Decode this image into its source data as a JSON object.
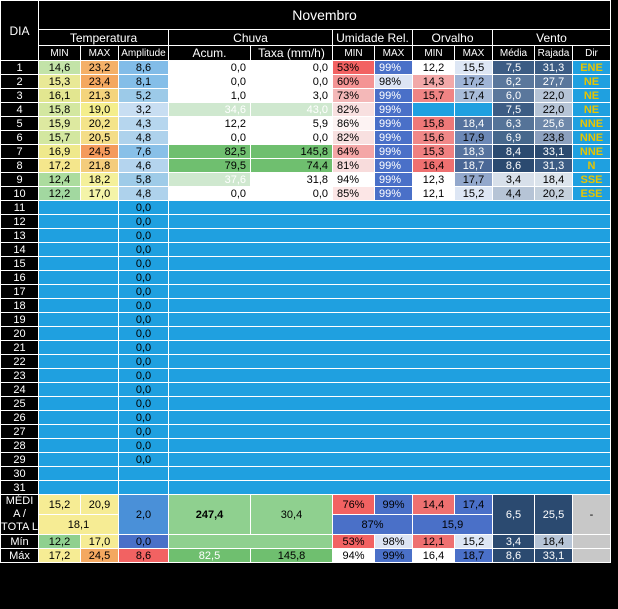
{
  "header": {
    "dia": "DIA",
    "month": "Novembro",
    "groups": {
      "temperatura": "Temperatura",
      "chuva": "Chuva",
      "umidade": "Umidade Rel.",
      "orvalho": "Orvalho",
      "vento": "Vento"
    },
    "sub": {
      "t_min": "MIN",
      "t_max": "MAX",
      "t_amp": "Amplitude",
      "c_acum": "Acum.",
      "c_taxa": "Taxa (mm/h)",
      "u_min": "MIN",
      "u_max": "MAX",
      "o_min": "MIN",
      "o_max": "MAX",
      "v_media": "Média",
      "v_rajada": "Rajada",
      "v_dir": "Dir"
    }
  },
  "days": [
    {
      "n": "1",
      "tmin": "14,6",
      "tmax": "23,2",
      "amp": "8,6",
      "acum": "0,0",
      "taxa": "0,0",
      "umin": "53%",
      "umax": "99%",
      "omin": "12,2",
      "omax": "15,5",
      "vmed": "7,5",
      "vraj": "31,3",
      "dir": "ENE"
    },
    {
      "n": "2",
      "tmin": "15,3",
      "tmax": "23,4",
      "amp": "8,1",
      "acum": "0,0",
      "taxa": "0,0",
      "umin": "60%",
      "umax": "98%",
      "omin": "14,3",
      "omax": "17,2",
      "vmed": "6,2",
      "vraj": "27,7",
      "dir": "NE"
    },
    {
      "n": "3",
      "tmin": "16,1",
      "tmax": "21,3",
      "amp": "5,2",
      "acum": "1,0",
      "taxa": "3,0",
      "umin": "73%",
      "umax": "99%",
      "omin": "15,7",
      "omax": "17,4",
      "vmed": "6,0",
      "vraj": "22,0",
      "dir": "NE"
    },
    {
      "n": "4",
      "tmin": "15,8",
      "tmax": "19,0",
      "amp": "3,2",
      "acum": "34,6",
      "taxa": "43,0",
      "umin": "82%",
      "umax": "99%",
      "omin": "",
      "omax": "",
      "vmed": "7,5",
      "vraj": "22,0",
      "dir": "NE"
    },
    {
      "n": "5",
      "tmin": "15,9",
      "tmax": "20,2",
      "amp": "4,3",
      "acum": "12,2",
      "taxa": "5,9",
      "umin": "86%",
      "umax": "99%",
      "omin": "15,8",
      "omax": "18,4",
      "vmed": "6,3",
      "vraj": "25,6",
      "dir": "NNE"
    },
    {
      "n": "6",
      "tmin": "15,7",
      "tmax": "20,5",
      "amp": "4,8",
      "acum": "0,0",
      "taxa": "0,0",
      "umin": "82%",
      "umax": "99%",
      "omin": "15,6",
      "omax": "17,9",
      "vmed": "6,9",
      "vraj": "23,8",
      "dir": "NNE"
    },
    {
      "n": "7",
      "tmin": "16,9",
      "tmax": "24,5",
      "amp": "7,6",
      "acum": "82,5",
      "taxa": "145,8",
      "umin": "64%",
      "umax": "99%",
      "omin": "15,3",
      "omax": "18,3",
      "vmed": "8,4",
      "vraj": "33,1",
      "dir": "NNE"
    },
    {
      "n": "8",
      "tmin": "17,2",
      "tmax": "21,8",
      "amp": "4,6",
      "acum": "79,5",
      "taxa": "74,4",
      "umin": "81%",
      "umax": "99%",
      "omin": "16,4",
      "omax": "18,7",
      "vmed": "8,6",
      "vraj": "31,3",
      "dir": "N"
    },
    {
      "n": "9",
      "tmin": "12,4",
      "tmax": "18,2",
      "amp": "5,8",
      "acum": "37,6",
      "taxa": "31,8",
      "umin": "94%",
      "umax": "99%",
      "omin": "12,3",
      "omax": "17,7",
      "vmed": "3,4",
      "vraj": "18,4",
      "dir": "SSE"
    },
    {
      "n": "10",
      "tmin": "12,2",
      "tmax": "17,0",
      "amp": "4,8",
      "acum": "0,0",
      "taxa": "0,0",
      "umin": "85%",
      "umax": "99%",
      "omin": "12,1",
      "omax": "15,2",
      "vmed": "4,4",
      "vraj": "20,2",
      "dir": "ESE"
    }
  ],
  "empty_days": [
    "11",
    "12",
    "13",
    "14",
    "15",
    "16",
    "17",
    "18",
    "19",
    "20",
    "21",
    "22",
    "23",
    "24",
    "25",
    "26",
    "27",
    "28",
    "29",
    "30",
    "31"
  ],
  "empty_amp": [
    "0,0",
    "0,0",
    "0,0",
    "0,0",
    "0,0",
    "0,0",
    "0,0",
    "0,0",
    "0,0",
    "0,0",
    "0,0",
    "0,0",
    "0,0",
    "0,0",
    "0,0",
    "0,0",
    "0,0",
    "0,0",
    "0,0",
    "",
    ""
  ],
  "summary": {
    "media_label": "MÉDI A / TOTA L",
    "min_label": "Mín",
    "max_label": "Máx",
    "media": {
      "tmin": "15,2",
      "tmax": "20,9",
      "tavg": "18,1",
      "amp": "2,0",
      "acum": "247,4",
      "taxa": "30,4",
      "umin": "76%",
      "umax": "99%",
      "uavg": "87%",
      "omin": "14,4",
      "omax": "17,4",
      "oavg": "15,9",
      "vmed": "6,5",
      "vraj": "25,5",
      "dir": "-"
    },
    "min": {
      "tmin": "12,2",
      "tmax": "17,0",
      "amp": "0,0",
      "umin": "53%",
      "umax": "98%",
      "omin": "12,1",
      "omax": "15,2",
      "vmed": "3,4",
      "vraj": "18,4"
    },
    "max": {
      "tmin": "17,2",
      "tmax": "24,5",
      "amp": "8,6",
      "acum": "82,5",
      "taxa": "145,8",
      "umin": "94%",
      "umax": "99%",
      "omin": "16,4",
      "omax": "18,7",
      "vmed": "8,6",
      "vraj": "33,1"
    }
  },
  "colors": {
    "blank": "#1fa0e0",
    "day_bg": "#000000",
    "dir_bg": "#f3ef20",
    "dir_text": "#e8c400",
    "rain_dark": "#6fbf6f",
    "rain_light": "#cfe8cf",
    "summary_temp_yellow": "#f6ec94",
    "summary_green": "#8fd08f",
    "summary_gray": "#c8c8c8"
  },
  "cell_colors": {
    "tmin": [
      "#c3e3a8",
      "#e9e996",
      "#e2e690",
      "#d3e7a0",
      "#dde9a0",
      "#d3e7a0",
      "#efe98c",
      "#f4e68c",
      "#acdc9e",
      "#a2d8a0"
    ],
    "tmax": [
      "#f4b068",
      "#f4a860",
      "#f4d47c",
      "#f4ee8c",
      "#f4e48a",
      "#f4dd88",
      "#f49a5c",
      "#f4cc7c",
      "#f4f09a",
      "#f4f4a8"
    ],
    "amp": [
      "#82bce8",
      "#84bee8",
      "#9ccae8",
      "#c8def2",
      "#b6d6ee",
      "#aed2ec",
      "#88c0e8",
      "#b4d4ee",
      "#9ecbe8",
      "#aed2ec"
    ],
    "acum": [
      "#ffffff",
      "#ffffff",
      "#ffffff",
      "#cfe8cf",
      "#ffffff",
      "#ffffff",
      "#6fbf6f",
      "#6fbf6f",
      "#cfe8cf",
      "#ffffff"
    ],
    "taxa": [
      "#ffffff",
      "#ffffff",
      "#ffffff",
      "#cfe8cf",
      "#ffffff",
      "#ffffff",
      "#6fbf6f",
      "#6fbf6f",
      "#ffffff",
      "#ffffff"
    ],
    "umin": [
      "#f26262",
      "#f49494",
      "#f4b8b8",
      "#f8e0e0",
      "#fdf3f3",
      "#f8e0e0",
      "#f4a6a6",
      "#f8dcdc",
      "#ffffff",
      "#fce6e6"
    ],
    "umax": [
      "#4a70c8",
      "#dce4f4",
      "#4a70c8",
      "#4a70c8",
      "#4a70c8",
      "#4a70c8",
      "#4a70c8",
      "#4a70c8",
      "#4a70c8",
      "#4a70c8"
    ],
    "omin": [
      "#ffffff",
      "#f2a8a8",
      "#f08484",
      "#1fa0e0",
      "#ee7878",
      "#f08888",
      "#ef8080",
      "#ee7070",
      "#ffffff",
      "#ffffff"
    ],
    "omax": [
      "#dde6f4",
      "#9fb4d6",
      "#a8bcd8",
      "#1fa0e0",
      "#56739e",
      "#6c88b6",
      "#56739e",
      "#4a6796",
      "#93a8cc",
      "#dde6f4"
    ],
    "vmed": [
      "#3c5c84",
      "#5a779c",
      "#5a779c",
      "#3c5c84",
      "#557398",
      "#46678c",
      "#2b4a70",
      "#2b4a70",
      "#d8e0ea",
      "#b6c4d6"
    ],
    "vraj": [
      "#3c5c84",
      "#5a779c",
      "#b6c4d6",
      "#b6c4d6",
      "#6e88aa",
      "#8ca0be",
      "#2b4a70",
      "#3c5c84",
      "#dce4ec",
      "#c4d0dc"
    ],
    "summary": {
      "media": {
        "tmin": "#f6ec94",
        "tmax": "#f6ec94",
        "tavg": "#f6ec94",
        "amp": "#4a90d8",
        "acum": "#8fd08f",
        "taxa": "#8fd08f",
        "umin": "#f26262",
        "umax": "#4a70c8",
        "uavg": "#4a70c8",
        "omin": "#ee7070",
        "omax": "#4a70c8",
        "oavg": "#4a70c8",
        "vmed": "#2b4a70",
        "vraj": "#2b4a70",
        "dir": "#c8c8c8"
      },
      "min": {
        "tmin": "#8fd08f",
        "tmax": "#f6ec94",
        "amp": "#4a70c8",
        "umin": "#f26262",
        "umax": "#dce4f4",
        "omin": "#ee7070",
        "omax": "#dde6f4",
        "vmed": "#2b4a70",
        "vraj": "#b6c4d6"
      },
      "max": {
        "tmin": "#f6ec94",
        "tmax": "#f4a860",
        "amp": "#f26262",
        "acum": "#6fbf6f",
        "taxa": "#6fbf6f",
        "umin": "#ffffff",
        "umax": "#4a70c8",
        "omin": "#ffffff",
        "omax": "#4a70c8",
        "vmed": "#2b4a70",
        "vraj": "#2b4a70"
      }
    }
  }
}
